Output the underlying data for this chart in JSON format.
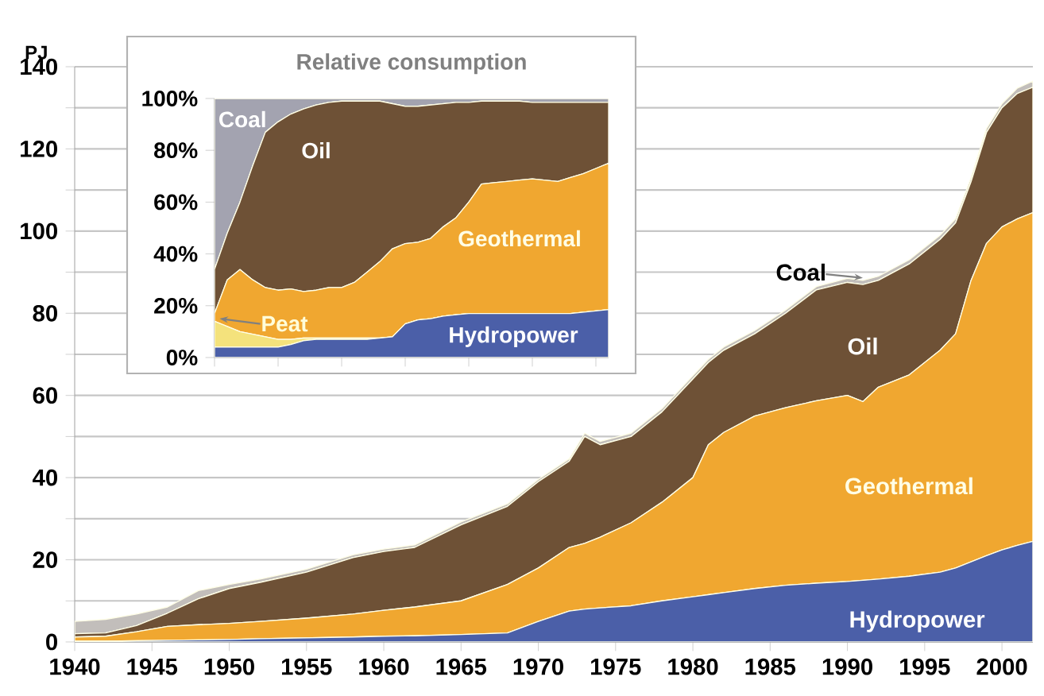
{
  "chart_data": [
    {
      "type": "area",
      "stacked": true,
      "ylabel": "PJ",
      "grid": "y",
      "x": [
        1940,
        1942,
        1944,
        1946,
        1948,
        1950,
        1952,
        1955,
        1958,
        1960,
        1962,
        1965,
        1968,
        1970,
        1972,
        1973,
        1974,
        1976,
        1978,
        1980,
        1981,
        1982,
        1984,
        1986,
        1988,
        1990,
        1991,
        1992,
        1994,
        1996,
        1997,
        1998,
        1999,
        2000,
        2001,
        2002
      ],
      "series": [
        {
          "name": "Hydropower",
          "color": "#4b5fa8",
          "values": [
            0.2,
            0.2,
            0.3,
            0.4,
            0.5,
            0.6,
            0.8,
            1.0,
            1.2,
            1.4,
            1.5,
            1.8,
            2.2,
            5.0,
            7.5,
            8.0,
            8.3,
            8.8,
            10.0,
            11.0,
            11.5,
            12.0,
            13.0,
            13.8,
            14.3,
            14.7,
            15.0,
            15.3,
            16.0,
            17.0,
            18.0,
            19.5,
            21.0,
            22.4,
            23.5,
            24.5
          ]
        },
        {
          "name": "Geothermal",
          "color": "#f0a730",
          "values": [
            1.0,
            1.2,
            2.2,
            3.4,
            3.7,
            3.9,
            4.2,
            4.8,
            5.6,
            6.3,
            7.0,
            8.2,
            11.8,
            13.0,
            15.5,
            16.0,
            17.2,
            20.2,
            24.0,
            29.0,
            36.5,
            39.0,
            42.0,
            43.2,
            44.4,
            45.3,
            43.5,
            46.7,
            49.0,
            54.0,
            57.0,
            68.5,
            76.0,
            78.6,
            79.5,
            80.0
          ]
        },
        {
          "name": "Oil",
          "color": "#6e5136",
          "values": [
            0.8,
            0.8,
            1.5,
            3.2,
            6.3,
            8.5,
            9.5,
            11.2,
            13.7,
            14.3,
            14.5,
            18.5,
            19.0,
            21.0,
            21.0,
            26.0,
            22.5,
            21.0,
            22.0,
            24.0,
            20.0,
            20.0,
            20.0,
            23.0,
            27.0,
            27.5,
            28.5,
            26.0,
            27.0,
            27.0,
            27.0,
            24.0,
            27.0,
            29.0,
            30.5,
            30.5
          ]
        },
        {
          "name": "Coal",
          "color": "#c2bebb",
          "values": [
            3.0,
            3.3,
            2.8,
            1.5,
            2.0,
            1.0,
            0.8,
            0.7,
            0.7,
            0.6,
            0.6,
            0.7,
            0.6,
            0.6,
            0.6,
            0.8,
            0.8,
            0.8,
            0.8,
            0.8,
            0.8,
            0.8,
            0.8,
            0.8,
            0.8,
            1.0,
            1.0,
            1.0,
            1.0,
            1.0,
            1.0,
            1.0,
            1.0,
            1.0,
            1.3,
            1.5
          ]
        }
      ],
      "xlim": [
        1940,
        2002
      ],
      "ylim": [
        0,
        140
      ],
      "xticks": [
        1940,
        1945,
        1950,
        1955,
        1960,
        1965,
        1970,
        1975,
        1980,
        1985,
        1990,
        1995,
        2000
      ],
      "yticks": [
        0,
        {
          "value": 10,
          "label": null
        },
        20,
        {
          "value": 30,
          "label": null
        },
        40,
        {
          "value": 50,
          "label": null
        },
        60,
        {
          "value": 70,
          "label": null
        },
        80,
        {
          "value": 90,
          "label": null
        },
        100,
        {
          "value": 110,
          "label": null
        },
        120,
        {
          "value": 130,
          "label": null
        },
        140
      ]
    },
    {
      "type": "area",
      "stacked": true,
      "title": "Relative consumption",
      "tick_labels": "y",
      "categories": [
        null,
        null,
        null,
        null,
        null,
        null,
        null,
        null,
        null,
        null,
        null,
        null,
        null,
        null,
        null,
        null,
        null,
        null,
        null,
        null,
        null,
        null,
        null,
        null,
        null,
        null,
        null,
        null,
        null,
        null,
        null,
        null
      ],
      "series": [
        {
          "name": "Hydropower",
          "color": "#4b5fa8",
          "values": [
            4,
            4,
            4,
            4,
            4,
            4,
            5,
            6.5,
            7,
            7,
            7,
            7,
            7,
            7.5,
            8,
            13,
            14.5,
            15,
            16,
            16.5,
            17,
            17,
            17,
            17,
            17,
            17,
            17,
            17,
            17,
            17.5,
            18,
            18.5
          ]
        },
        {
          "name": "Peat",
          "color": "#f4e27c",
          "values": [
            10,
            8,
            6,
            5,
            4,
            3,
            2,
            1,
            0.5,
            0.5,
            0.5,
            0.5,
            0.5,
            0,
            0,
            0,
            0,
            0,
            0,
            0,
            0,
            0,
            0,
            0,
            0,
            0,
            0,
            0,
            0,
            0,
            0,
            0
          ]
        },
        {
          "name": "Geothermal",
          "color": "#f0a730",
          "values": [
            3,
            18,
            24,
            21,
            19,
            19,
            19.5,
            18,
            18.5,
            19.5,
            19.5,
            21.5,
            25.5,
            29.5,
            34,
            31,
            30,
            31,
            34.5,
            37.5,
            43,
            50,
            50.5,
            51,
            51.5,
            52,
            51.5,
            51,
            52.5,
            53.5,
            55,
            56.5
          ]
        },
        {
          "name": "Oil",
          "color": "#6e5136",
          "values": [
            17,
            18,
            26,
            44,
            60,
            65,
            67.5,
            70.5,
            71.5,
            71.5,
            72,
            70,
            66,
            62,
            56,
            53,
            52.5,
            51.5,
            47.5,
            44.5,
            38.5,
            32,
            31.5,
            31,
            30.5,
            29.5,
            30,
            30.5,
            29,
            27.5,
            25.5,
            23.5
          ]
        },
        {
          "name": "Coal",
          "color": "#a3a3b0",
          "values": [
            66,
            52,
            40,
            26,
            13,
            9,
            6,
            4,
            2.5,
            1.5,
            1,
            1,
            1,
            1,
            2,
            3,
            3,
            2.5,
            2,
            1.5,
            1.5,
            1,
            1,
            1,
            1,
            1.5,
            1.5,
            1.5,
            1.5,
            1.5,
            1.5,
            1.5
          ]
        }
      ],
      "ylim": [
        0,
        100
      ],
      "yticks": [
        {
          "value": 0,
          "label": "0%"
        },
        {
          "value": 20,
          "label": "20%"
        },
        {
          "value": 40,
          "label": "40%"
        },
        {
          "value": 60,
          "label": "60%"
        },
        {
          "value": 80,
          "label": "80%"
        },
        {
          "value": 100,
          "label": "100%"
        }
      ]
    }
  ]
}
